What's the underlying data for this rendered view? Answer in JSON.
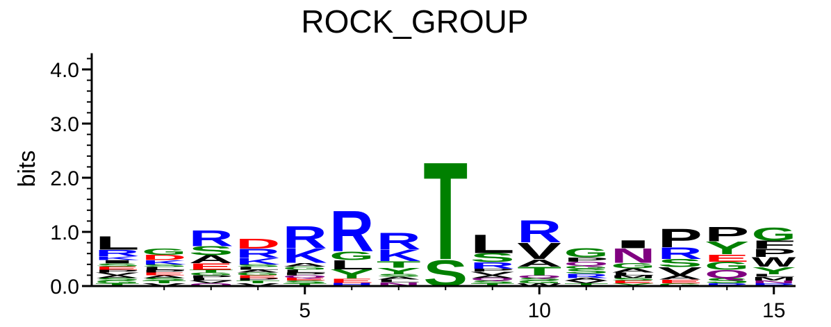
{
  "chart_data": {
    "type": "sequence-logo",
    "title": "ROCK_GROUP",
    "ylabel": "bits",
    "ylim": [
      0,
      4.3
    ],
    "xlim": [
      0.5,
      15.5
    ],
    "y_ticks": [
      {
        "value": 0,
        "label": "0.0"
      },
      {
        "value": 1,
        "label": "1.0"
      },
      {
        "value": 2,
        "label": "2.0"
      },
      {
        "value": 3,
        "label": "3.0"
      },
      {
        "value": 4,
        "label": "4.0"
      }
    ],
    "y_minor_step": 0.2,
    "x_ticks": [
      {
        "value": 5,
        "label": "5"
      },
      {
        "value": 10,
        "label": "10"
      },
      {
        "value": 15,
        "label": "15"
      }
    ],
    "x_minor_ticks": [
      2,
      3,
      4,
      5,
      6,
      7,
      8,
      9,
      10,
      11,
      12,
      13,
      14,
      15
    ],
    "colors": {
      "blue": "#0000ff",
      "red": "#ff0000",
      "green": "#008000",
      "black": "#000000",
      "purple": "#800080"
    },
    "color_scheme": {
      "R": "blue",
      "K": "blue",
      "H": "blue",
      "D": "red",
      "E": "red",
      "G": "green",
      "S": "green",
      "T": "green",
      "Y": "green",
      "C": "green",
      "N": "purple",
      "Q": "purple",
      "A": "black",
      "V": "black",
      "L": "black",
      "I": "black",
      "P": "black",
      "W": "black",
      "F": "black",
      "M": "black"
    },
    "positions": [
      {
        "pos": 1,
        "stack": [
          [
            "T",
            0.05
          ],
          [
            "G",
            0.05
          ],
          [
            "S",
            0.05
          ],
          [
            "A",
            0.05
          ],
          [
            "V",
            0.05
          ],
          [
            "P",
            0.05
          ],
          [
            "E",
            0.06
          ],
          [
            "S",
            0.06
          ],
          [
            "I",
            0.06
          ],
          [
            "K",
            0.07
          ],
          [
            "R",
            0.12
          ],
          [
            "L",
            0.26
          ]
        ]
      },
      {
        "pos": 2,
        "stack": [
          [
            "V",
            0.05
          ],
          [
            "T",
            0.05
          ],
          [
            "S",
            0.05
          ],
          [
            "A",
            0.05
          ],
          [
            "E",
            0.05
          ],
          [
            "P",
            0.05
          ],
          [
            "L",
            0.05
          ],
          [
            "S",
            0.05
          ],
          [
            "K",
            0.08
          ],
          [
            "D",
            0.1
          ],
          [
            "G",
            0.12
          ]
        ]
      },
      {
        "pos": 3,
        "stack": [
          [
            "Q",
            0.05
          ],
          [
            "V",
            0.05
          ],
          [
            "L",
            0.05
          ],
          [
            "P",
            0.05
          ],
          [
            "G",
            0.05
          ],
          [
            "T",
            0.05
          ],
          [
            "E",
            0.12
          ],
          [
            "A",
            0.15
          ],
          [
            "S",
            0.17
          ],
          [
            "R",
            0.3
          ]
        ]
      },
      {
        "pos": 4,
        "stack": [
          [
            "V",
            0.05
          ],
          [
            "T",
            0.05
          ],
          [
            "P",
            0.05
          ],
          [
            "E",
            0.05
          ],
          [
            "G",
            0.05
          ],
          [
            "A",
            0.05
          ],
          [
            "L",
            0.05
          ],
          [
            "S",
            0.05
          ],
          [
            "K",
            0.12
          ],
          [
            "R",
            0.17
          ],
          [
            "D",
            0.19
          ]
        ]
      },
      {
        "pos": 5,
        "stack": [
          [
            "T",
            0.05
          ],
          [
            "S",
            0.05
          ],
          [
            "E",
            0.05
          ],
          [
            "Q",
            0.05
          ],
          [
            "P",
            0.05
          ],
          [
            "L",
            0.05
          ],
          [
            "G",
            0.06
          ],
          [
            "A",
            0.07
          ],
          [
            "K",
            0.27
          ],
          [
            "R",
            0.42
          ]
        ]
      },
      {
        "pos": 6,
        "stack": [
          [
            "H",
            0.06
          ],
          [
            "E",
            0.08
          ],
          [
            "Y",
            0.17
          ],
          [
            "L",
            0.17
          ],
          [
            "G",
            0.16
          ],
          [
            "R",
            0.77
          ]
        ]
      },
      {
        "pos": 7,
        "stack": [
          [
            "N",
            0.07
          ],
          [
            "L",
            0.05
          ],
          [
            "A",
            0.05
          ],
          [
            "S",
            0.05
          ],
          [
            "Y",
            0.12
          ],
          [
            "T",
            0.12
          ],
          [
            "K",
            0.22
          ],
          [
            "R",
            0.32
          ]
        ]
      },
      {
        "pos": 8,
        "stack": [
          [
            "S",
            0.5
          ],
          [
            "T",
            1.85
          ]
        ]
      },
      {
        "pos": 9,
        "stack": [
          [
            "T",
            0.05
          ],
          [
            "S",
            0.05
          ],
          [
            "Q",
            0.05
          ],
          [
            "A",
            0.05
          ],
          [
            "V",
            0.07
          ],
          [
            "P",
            0.05
          ],
          [
            "R",
            0.12
          ],
          [
            "S",
            0.17
          ],
          [
            "L",
            0.35
          ]
        ]
      },
      {
        "pos": 10,
        "stack": [
          [
            "W",
            0.05
          ],
          [
            "G",
            0.05
          ],
          [
            "S",
            0.05
          ],
          [
            "Q",
            0.05
          ],
          [
            "T",
            0.16
          ],
          [
            "A",
            0.14
          ],
          [
            "V",
            0.31
          ],
          [
            "R",
            0.42
          ]
        ]
      },
      {
        "pos": 11,
        "stack": [
          [
            "T",
            0.05
          ],
          [
            "V",
            0.05
          ],
          [
            "A",
            0.05
          ],
          [
            "R",
            0.08
          ],
          [
            "S",
            0.09
          ],
          [
            "G",
            0.05
          ],
          [
            "Q",
            0.08
          ],
          [
            "P",
            0.08
          ],
          [
            "G",
            0.17
          ]
        ]
      },
      {
        "pos": 12,
        "stack": [
          [
            "Y",
            0.05
          ],
          [
            "E",
            0.05
          ],
          [
            "S",
            0.05
          ],
          [
            "M",
            0.05
          ],
          [
            "L",
            0.05
          ],
          [
            "A",
            0.08
          ],
          [
            "G",
            0.1
          ],
          [
            "N",
            0.27
          ],
          [
            "I",
            0.15
          ]
        ]
      },
      {
        "pos": 13,
        "stack": [
          [
            "G",
            0.05
          ],
          [
            "E",
            0.07
          ],
          [
            "A",
            0.08
          ],
          [
            "V",
            0.15
          ],
          [
            "S",
            0.15
          ],
          [
            "R",
            0.22
          ],
          [
            "P",
            0.35
          ]
        ]
      },
      {
        "pos": 14,
        "stack": [
          [
            "R",
            0.05
          ],
          [
            "S",
            0.1
          ],
          [
            "Q",
            0.15
          ],
          [
            "G",
            0.15
          ],
          [
            "E",
            0.14
          ],
          [
            "Y",
            0.24
          ],
          [
            "P",
            0.27
          ]
        ]
      },
      {
        "pos": 15,
        "stack": [
          [
            "R",
            0.05
          ],
          [
            "N",
            0.05
          ],
          [
            "M",
            0.07
          ],
          [
            "L",
            0.05
          ],
          [
            "Y",
            0.14
          ],
          [
            "W",
            0.18
          ],
          [
            "P",
            0.15
          ],
          [
            "F",
            0.15
          ],
          [
            "G",
            0.25
          ]
        ]
      }
    ]
  }
}
